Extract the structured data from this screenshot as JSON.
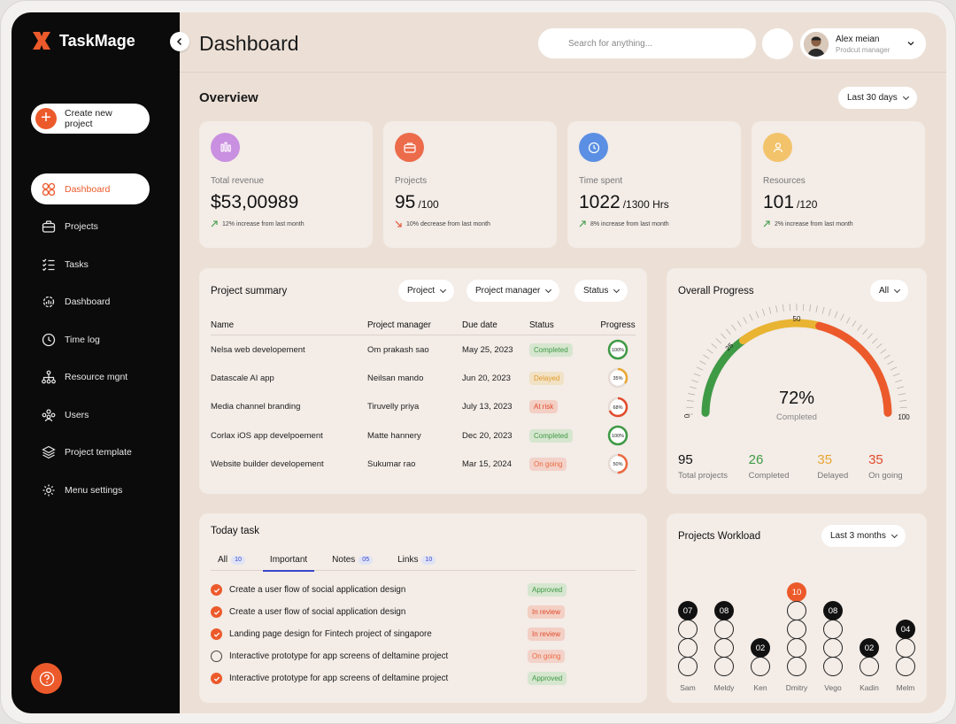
{
  "brand": {
    "name": "TaskMage",
    "accent": "#ec5a2b"
  },
  "sidebar": {
    "create_label": "Create new project",
    "items": [
      {
        "label": "Dashboard",
        "icon": "grid-icon",
        "active": true
      },
      {
        "label": "Projects",
        "icon": "briefcase-icon"
      },
      {
        "label": "Tasks",
        "icon": "checklist-icon"
      },
      {
        "label": "Dashboard",
        "icon": "gear-chart-icon"
      },
      {
        "label": "Time log",
        "icon": "clock-icon"
      },
      {
        "label": "Resource mgnt",
        "icon": "hierarchy-icon"
      },
      {
        "label": "Users",
        "icon": "users-icon"
      },
      {
        "label": "Project template",
        "icon": "layers-icon"
      },
      {
        "label": "Menu settings",
        "icon": "settings-icon"
      }
    ]
  },
  "header": {
    "title": "Dashboard",
    "search_placeholder": "Search for anything...",
    "user": {
      "name": "Alex meian",
      "role": "Prodcut manager"
    }
  },
  "overview": {
    "title": "Overview",
    "range": "Last 30 days",
    "stats": [
      {
        "label": "Total revenue",
        "value": "$53,00989",
        "suffix": "",
        "note": "12% increase from last month",
        "trend": "up",
        "icon": "bar-chart-icon",
        "color": "#c98fe0"
      },
      {
        "label": "Projects",
        "value": "95",
        "suffix": "/100",
        "note": "10% decrease from last month",
        "trend": "down",
        "icon": "briefcase-icon",
        "color": "#ec6b4a"
      },
      {
        "label": "Time spent",
        "value": "1022",
        "suffix": "/1300 Hrs",
        "note": "8% increase from last month",
        "trend": "up",
        "icon": "clock-icon",
        "color": "#5b8fe3"
      },
      {
        "label": "Resources",
        "value": "101",
        "suffix": "/120",
        "note": "2% increase from last month",
        "trend": "up",
        "icon": "user-icon",
        "color": "#f2c36b"
      }
    ]
  },
  "summary": {
    "title": "Project summary",
    "filters": [
      "Project",
      "Project manager",
      "Status"
    ],
    "columns": [
      "Name",
      "Project manager",
      "Due date",
      "Status",
      "Progress"
    ],
    "rows": [
      {
        "name": "Nelsa web developement",
        "manager": "Om prakash sao",
        "due": "May 25, 2023",
        "status": "Completed",
        "kind": "completed",
        "progress": 100,
        "progress_label": "100%",
        "ring": "#3f9a45"
      },
      {
        "name": "Datascale AI app",
        "manager": "Neilsan mando",
        "due": "Jun 20, 2023",
        "status": "Delayed",
        "kind": "delayed",
        "progress": 35,
        "progress_label": "35%",
        "ring": "#e9a632"
      },
      {
        "name": "Media channel branding",
        "manager": "Tiruvelly priya",
        "due": "July 13, 2023",
        "status": "At risk",
        "kind": "risk",
        "progress": 68,
        "progress_label": "68%",
        "ring": "#e24b2b"
      },
      {
        "name": "Corlax iOS app develpoement",
        "manager": "Matte hannery",
        "due": "Dec 20, 2023",
        "status": "Completed",
        "kind": "completed",
        "progress": 100,
        "progress_label": "100%",
        "ring": "#3f9a45"
      },
      {
        "name": "Website builder developement",
        "manager": "Sukumar rao",
        "due": "Mar 15, 2024",
        "status": "On going",
        "kind": "going",
        "progress": 50,
        "progress_label": "50%",
        "ring": "#ec6a40"
      }
    ]
  },
  "progress": {
    "title": "Overall Progress",
    "filter": "All",
    "percent": 72,
    "percent_label": "72%",
    "sub": "Completed",
    "ticks": [
      "0",
      "25",
      "50",
      "100"
    ],
    "legend": [
      {
        "value": "95",
        "label": "Total projects",
        "color": "#111111"
      },
      {
        "value": "26",
        "label": "Completed",
        "color": "#3f9a45"
      },
      {
        "value": "35",
        "label": "Delayed",
        "color": "#e9a632"
      },
      {
        "value": "35",
        "label": "On going",
        "color": "#e24b2b"
      }
    ]
  },
  "tasks": {
    "title": "Today task",
    "tabs": [
      {
        "label": "All",
        "count": "10"
      },
      {
        "label": "Important",
        "count": ""
      },
      {
        "label": "Notes",
        "count": "05"
      },
      {
        "label": "Links",
        "count": "10"
      }
    ],
    "items": [
      {
        "text": "Create a user flow of social application design",
        "status": "Approved",
        "kind": "approved",
        "done": true
      },
      {
        "text": "Create a user flow of social application design",
        "status": "In review",
        "kind": "review",
        "done": true
      },
      {
        "text": "Landing page design for Fintech project of singapore",
        "status": "In review",
        "kind": "review",
        "done": true
      },
      {
        "text": "Interactive prototype for app screens of deltamine project",
        "status": "On going",
        "kind": "going",
        "done": false
      },
      {
        "text": "Interactive prototype for app screens of deltamine project",
        "status": "Approved",
        "kind": "approved",
        "done": true
      }
    ]
  },
  "workload": {
    "title": "Projects Workload",
    "range": "Last 3 months",
    "people": [
      {
        "name": "Sam",
        "count": "07",
        "value": 7
      },
      {
        "name": "Meldy",
        "count": "08",
        "value": 8
      },
      {
        "name": "Ken",
        "count": "02",
        "value": 2
      },
      {
        "name": "Dmitry",
        "count": "10",
        "value": 10
      },
      {
        "name": "Vego",
        "count": "08",
        "value": 8
      },
      {
        "name": "Kadin",
        "count": "02",
        "value": 2
      },
      {
        "name": "Melm",
        "count": "04",
        "value": 4
      }
    ]
  }
}
